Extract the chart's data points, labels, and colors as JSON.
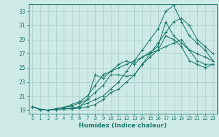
{
  "title": "",
  "xlabel": "Humidex (Indice chaleur)",
  "bg_color": "#ceeae6",
  "line_color": "#1a7a6e",
  "grid_color": "#a8ccc8",
  "xmin": -0.5,
  "xmax": 23.5,
  "ymin": 18.5,
  "ymax": 34.0,
  "yticks": [
    19,
    21,
    23,
    25,
    27,
    29,
    31,
    33
  ],
  "xticks": [
    0,
    1,
    2,
    3,
    4,
    5,
    6,
    7,
    8,
    9,
    10,
    11,
    12,
    13,
    14,
    15,
    16,
    17,
    18,
    19,
    20,
    21,
    22,
    23
  ],
  "series": [
    [
      19.5,
      19.1,
      19.0,
      19.1,
      19.2,
      19.2,
      19.3,
      19.5,
      19.8,
      20.5,
      21.5,
      22.0,
      23.0,
      24.0,
      25.5,
      27.0,
      28.5,
      30.0,
      31.5,
      32.0,
      31.0,
      29.0,
      28.0,
      27.0
    ],
    [
      19.5,
      19.1,
      19.0,
      19.1,
      19.2,
      19.3,
      19.5,
      20.0,
      20.5,
      21.0,
      22.0,
      23.0,
      24.5,
      26.0,
      27.5,
      29.0,
      30.5,
      33.0,
      33.8,
      31.5,
      29.5,
      28.5,
      27.5,
      26.0
    ],
    [
      19.5,
      19.1,
      19.0,
      19.1,
      19.2,
      19.3,
      19.5,
      20.5,
      24.0,
      23.5,
      24.5,
      25.5,
      26.0,
      25.5,
      26.5,
      27.2,
      28.0,
      31.5,
      29.5,
      28.5,
      27.5,
      27.0,
      26.5,
      26.0
    ],
    [
      19.5,
      19.1,
      19.0,
      19.2,
      19.4,
      19.6,
      20.0,
      20.5,
      21.5,
      22.5,
      24.0,
      24.0,
      23.8,
      24.0,
      25.5,
      26.5,
      27.5,
      29.5,
      29.0,
      28.0,
      26.0,
      25.5,
      25.0,
      25.5
    ],
    [
      19.5,
      19.1,
      19.0,
      19.2,
      19.4,
      19.8,
      20.2,
      21.0,
      22.5,
      24.0,
      24.5,
      25.0,
      25.5,
      26.0,
      26.5,
      27.0,
      27.5,
      28.0,
      28.5,
      29.0,
      27.5,
      26.0,
      25.5,
      25.5
    ]
  ]
}
